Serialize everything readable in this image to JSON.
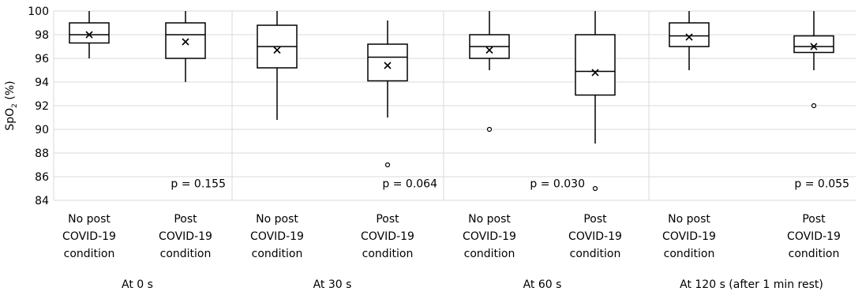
{
  "chart_data": {
    "type": "box",
    "ylabel": "SpO₂ (%)",
    "ylabel_main": "SpO",
    "ylabel_sub": "2",
    "ylabel_suffix": " (%)",
    "ylim": [
      84,
      100
    ],
    "yticks": [
      84,
      86,
      88,
      90,
      92,
      94,
      96,
      98,
      100
    ],
    "grid": true,
    "category_lines": [
      [
        "No post",
        "COVID-19",
        "condition"
      ],
      [
        "Post",
        "COVID-19",
        "condition"
      ]
    ],
    "panels": [
      {
        "title": "At 0 s",
        "p_value": "p = 0.155",
        "boxes": [
          {
            "min": 96,
            "q1": 97.3,
            "median": 98,
            "q3": 99,
            "max": 100,
            "mean": 98,
            "outliers": []
          },
          {
            "min": 94,
            "q1": 96,
            "median": 98,
            "q3": 99,
            "max": 100,
            "mean": 97.4,
            "outliers": []
          }
        ]
      },
      {
        "title": "At 30 s",
        "p_value": "p = 0.064",
        "boxes": [
          {
            "min": 90.8,
            "q1": 95.2,
            "median": 97,
            "q3": 98.8,
            "max": 100,
            "mean": 96.7,
            "outliers": []
          },
          {
            "min": 91,
            "q1": 94.1,
            "median": 96.1,
            "q3": 97.2,
            "max": 99.2,
            "mean": 95.4,
            "outliers": [
              87
            ]
          }
        ]
      },
      {
        "title": "At 60 s",
        "p_value": "p = 0.030",
        "boxes": [
          {
            "min": 95,
            "q1": 96,
            "median": 97,
            "q3": 98,
            "max": 100,
            "mean": 96.7,
            "outliers": [
              90
            ]
          },
          {
            "min": 88.8,
            "q1": 92.9,
            "median": 94.9,
            "q3": 98,
            "max": 100,
            "mean": 94.8,
            "outliers": [
              85
            ]
          }
        ]
      },
      {
        "title": "At 120 s (after 1 min rest)",
        "p_value": "p = 0.055",
        "boxes": [
          {
            "min": 95,
            "q1": 97,
            "median": 97.9,
            "q3": 99,
            "max": 100,
            "mean": 97.8,
            "outliers": []
          },
          {
            "min": 95,
            "q1": 96.5,
            "median": 97,
            "q3": 97.9,
            "max": 100,
            "mean": 97,
            "outliers": [
              92
            ]
          }
        ]
      }
    ]
  }
}
